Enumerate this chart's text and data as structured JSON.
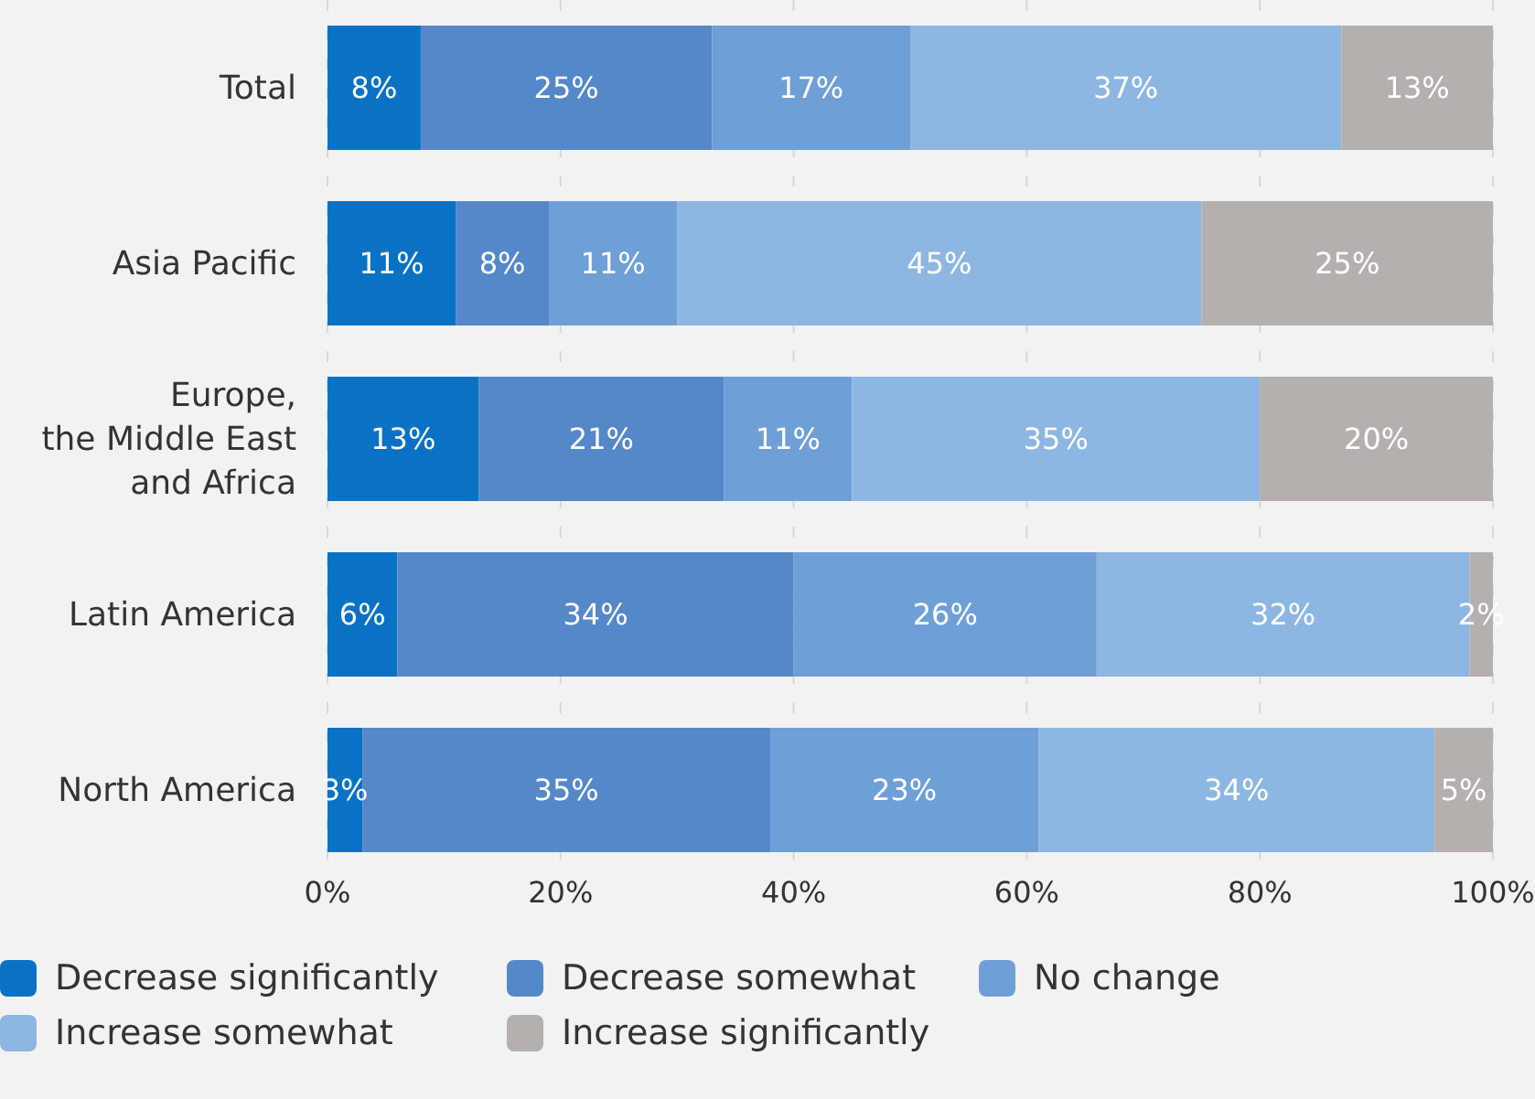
{
  "chart_data": {
    "type": "bar",
    "orientation": "horizontal",
    "stacked": true,
    "categories": [
      "Total",
      "Asia Pacific",
      "Europe,\nthe Middle East\nand Africa",
      "Latin America",
      "North America"
    ],
    "series": [
      {
        "name": "Decrease significantly",
        "color": "#0a72c4",
        "values": [
          8,
          11,
          13,
          6,
          3
        ],
        "value_labels": [
          "8%",
          "11%",
          "13%",
          "6%",
          "3%"
        ]
      },
      {
        "name": "Decrease somewhat",
        "color": "#5488c8",
        "values": [
          25,
          8,
          21,
          34,
          35
        ],
        "value_labels": [
          "25%",
          "8%",
          "21%",
          "34%",
          "35%"
        ]
      },
      {
        "name": "No change",
        "color": "#6e9fd6",
        "values": [
          17,
          11,
          11,
          26,
          23
        ],
        "value_labels": [
          "17%",
          "11%",
          "11%",
          "26%",
          "23%"
        ]
      },
      {
        "name": "Increase somewhat",
        "color": "#8db7e2",
        "values": [
          37,
          45,
          35,
          32,
          34
        ],
        "value_labels": [
          "37%",
          "45%",
          "35%",
          "32%",
          "34%"
        ]
      },
      {
        "name": "Increase significantly",
        "color": "#b5b0ae",
        "values": [
          13,
          25,
          20,
          2,
          5
        ],
        "value_labels": [
          "13%",
          "25%",
          "20%",
          "2%",
          "5%"
        ]
      }
    ],
    "xlim": [
      0,
      100
    ],
    "xticks": [
      {
        "value": 0,
        "label": "0%"
      },
      {
        "value": 20,
        "label": "20%"
      },
      {
        "value": 40,
        "label": "40%"
      },
      {
        "value": 60,
        "label": "60%"
      },
      {
        "value": 80,
        "label": "80%"
      },
      {
        "value": 100,
        "label": "100%"
      }
    ],
    "grid": "x",
    "legend": "bottom"
  }
}
